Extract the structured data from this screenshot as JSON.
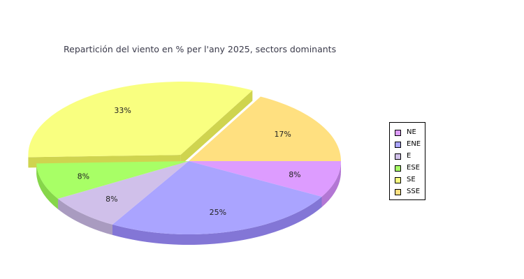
{
  "chart_data": {
    "type": "pie",
    "title": "Repartición del viento en % per l'any 2025, sectors dominants",
    "categories": [
      "NE",
      "ENE",
      "E",
      "ESE",
      "SE",
      "SSE"
    ],
    "values": [
      8,
      25,
      8,
      8,
      33,
      17
    ],
    "labels": [
      "8%",
      "25%",
      "8%",
      "8%",
      "33%",
      "17%"
    ],
    "colors": [
      "#dd9cff",
      "#aaa4ff",
      "#d0c0ea",
      "#a8ff66",
      "#f9ff80",
      "#ffe080"
    ],
    "side_colors": [
      "#b377d4",
      "#8376d6",
      "#a99bc0",
      "#86d64a",
      "#cfd44f",
      "#d9b65a"
    ],
    "exploded": "SE",
    "legend_position": "right",
    "style": "3d"
  }
}
